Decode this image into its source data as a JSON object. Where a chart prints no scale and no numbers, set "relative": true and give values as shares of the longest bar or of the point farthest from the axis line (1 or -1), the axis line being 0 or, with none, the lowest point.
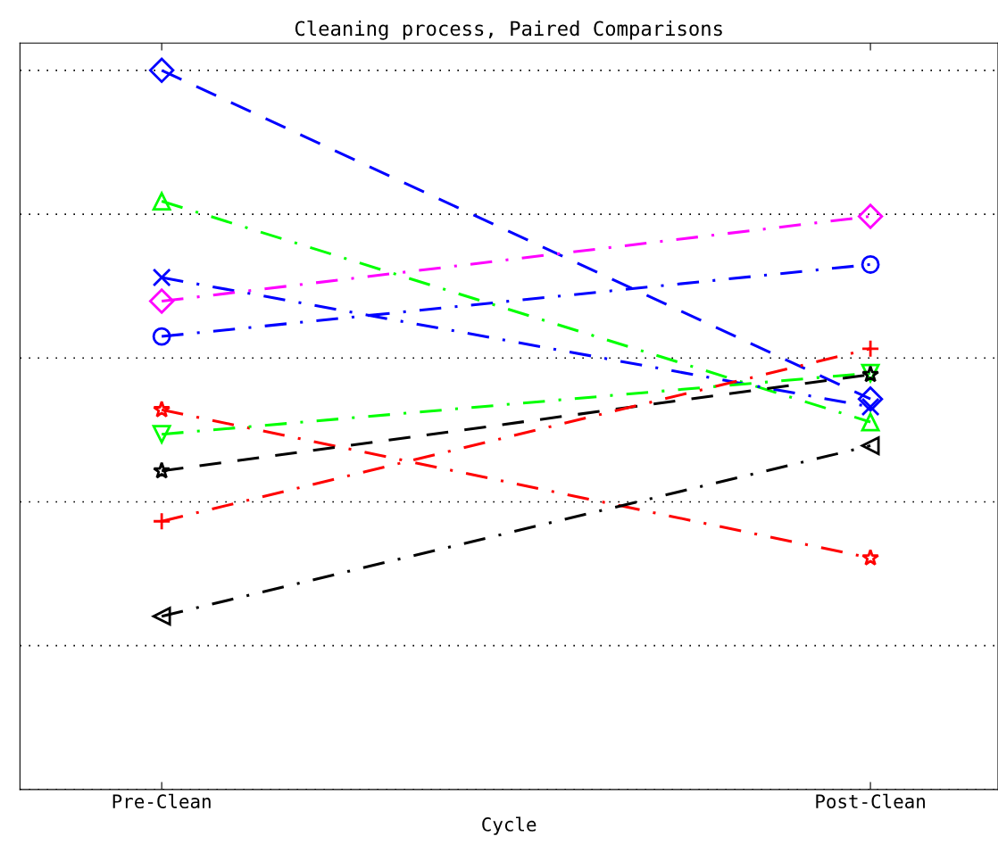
{
  "chart_data": {
    "type": "line",
    "title": "Cleaning process, Paired Comparisons",
    "xlabel": "Cycle",
    "categories": [
      "Pre-Clean",
      "Post-Clean"
    ],
    "relative": true,
    "grid": "y",
    "legend": false,
    "series": [
      {
        "color": "#0000ff",
        "marker": "diamond",
        "line_style": "dashed",
        "values": [
          1.0,
          0.543
        ]
      },
      {
        "color": "#00ff00",
        "marker": "triangle",
        "line_style": "dashdot",
        "values": [
          0.818,
          0.511
        ]
      },
      {
        "color": "#0000ff",
        "marker": "x",
        "line_style": "dashdot",
        "values": [
          0.712,
          0.532
        ]
      },
      {
        "color": "#ff00ff",
        "marker": "diamond",
        "line_style": "dashdot",
        "values": [
          0.679,
          0.797
        ]
      },
      {
        "color": "#0000ff",
        "marker": "circle",
        "line_style": "dashdot",
        "values": [
          0.63,
          0.73
        ]
      },
      {
        "color": "#ff0000",
        "marker": "star",
        "line_style": "dashdot",
        "values": [
          0.528,
          0.322
        ]
      },
      {
        "color": "#00ff00",
        "marker": "triangle_down",
        "line_style": "dashdot",
        "values": [
          0.494,
          0.579
        ]
      },
      {
        "color": "#000000",
        "marker": "star",
        "line_style": "dashed",
        "values": [
          0.443,
          0.577
        ]
      },
      {
        "color": "#ff0000",
        "marker": "plus",
        "line_style": "dashdot",
        "values": [
          0.373,
          0.613
        ]
      },
      {
        "color": "#000000",
        "marker": "triangle_left",
        "line_style": "dashdot",
        "values": [
          0.241,
          0.478
        ]
      }
    ]
  }
}
